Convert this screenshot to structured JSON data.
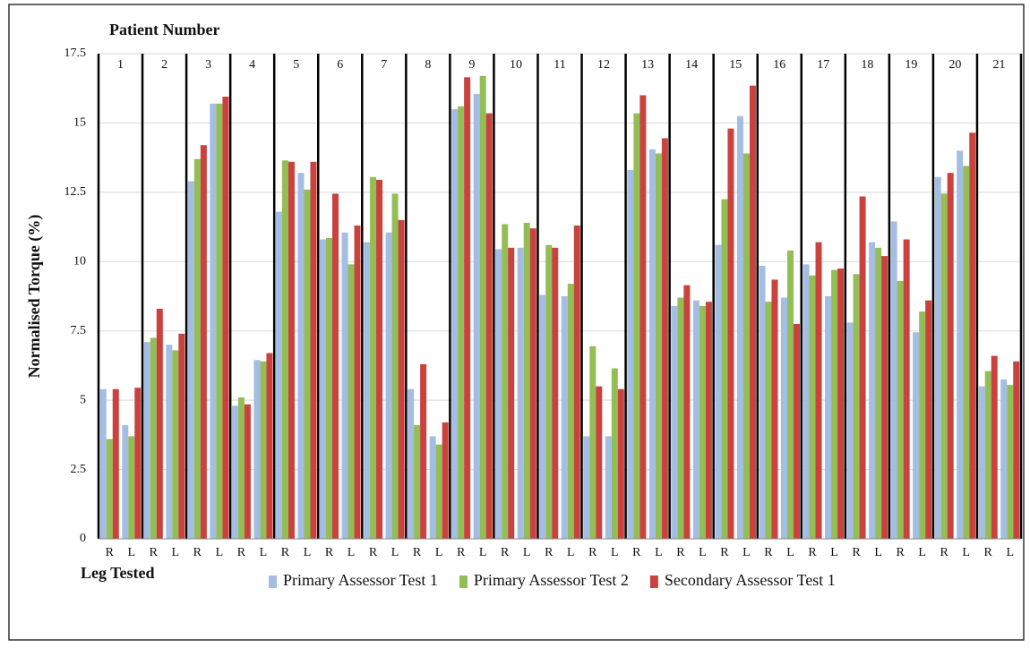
{
  "chart_data": {
    "type": "bar",
    "group_label": "Patient Number",
    "y_label": "Normalised Torque (%)",
    "x_label": "Leg Tested",
    "groups": [
      1,
      2,
      3,
      4,
      5,
      6,
      7,
      8,
      9,
      10,
      11,
      12,
      13,
      14,
      15,
      16,
      17,
      18,
      19,
      20,
      21
    ],
    "categories": [
      "R",
      "L",
      "R",
      "L",
      "R",
      "L",
      "R",
      "L",
      "R",
      "L",
      "R",
      "L",
      "R",
      "L",
      "R",
      "L",
      "R",
      "L",
      "R",
      "L",
      "R",
      "L",
      "R",
      "L",
      "R",
      "L",
      "R",
      "L",
      "R",
      "L",
      "R",
      "L",
      "R",
      "L",
      "R",
      "L",
      "R",
      "L",
      "R",
      "L",
      "R",
      "L"
    ],
    "series": [
      {
        "name": "Primary Assessor Test 1",
        "color": "#a3bde3",
        "values": [
          5.4,
          4.1,
          7.1,
          7.0,
          12.9,
          15.7,
          4.8,
          6.45,
          11.8,
          13.2,
          10.8,
          11.05,
          10.7,
          11.05,
          5.4,
          3.7,
          15.5,
          16.05,
          10.45,
          10.5,
          8.8,
          8.75,
          3.7,
          3.7,
          13.3,
          14.05,
          8.4,
          8.6,
          10.6,
          15.25,
          9.85,
          8.7,
          9.9,
          8.75,
          7.8,
          10.7,
          11.45,
          7.45,
          13.05,
          14.0,
          5.5,
          5.75
        ]
      },
      {
        "name": "Primary Assessor Test 2",
        "color": "#93bd55",
        "values": [
          3.6,
          3.7,
          7.25,
          6.8,
          13.7,
          15.7,
          5.1,
          6.4,
          13.65,
          12.6,
          10.85,
          9.9,
          13.05,
          12.45,
          4.1,
          3.4,
          15.6,
          16.7,
          11.35,
          11.4,
          10.6,
          9.2,
          6.95,
          6.15,
          15.35,
          13.9,
          8.7,
          8.4,
          12.25,
          13.9,
          8.55,
          10.4,
          9.5,
          9.7,
          9.55,
          10.5,
          9.3,
          8.2,
          12.45,
          13.45,
          6.05,
          5.55
        ]
      },
      {
        "name": "Secondary Assessor Test 1",
        "color": "#c9423e",
        "values": [
          5.4,
          5.45,
          8.3,
          7.4,
          14.2,
          15.95,
          4.85,
          6.7,
          13.6,
          13.6,
          12.45,
          11.3,
          12.95,
          11.5,
          6.3,
          4.2,
          16.65,
          15.35,
          10.5,
          11.2,
          10.5,
          11.3,
          5.5,
          5.4,
          16.0,
          14.45,
          9.15,
          8.55,
          14.8,
          16.35,
          9.35,
          7.75,
          10.7,
          9.75,
          12.35,
          10.2,
          10.8,
          8.6,
          13.2,
          14.65,
          6.6,
          6.4
        ]
      }
    ],
    "ylim": [
      0,
      17.5
    ],
    "yticks": [
      0,
      2.5,
      5,
      7.5,
      10,
      12.5,
      15,
      17.5
    ],
    "grid": true
  }
}
